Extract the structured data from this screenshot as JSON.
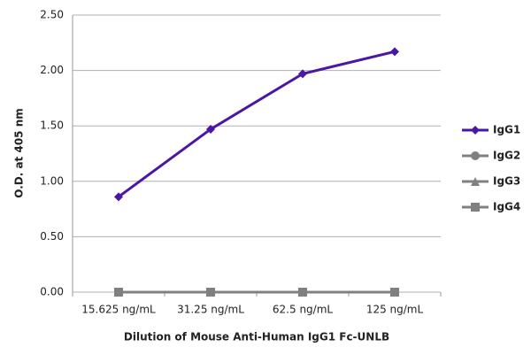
{
  "chart_data": {
    "type": "line",
    "y_label": "O.D. at 405 nm",
    "x_label": "Dilution of Mouse Anti-Human IgG1 Fc-UNLB",
    "categories": [
      "15.625 ng/mL",
      "31.25 ng/mL",
      "62.5 ng/mL",
      "125 ng/mL"
    ],
    "series": [
      {
        "name": "IgG1",
        "color": "#4b16a6",
        "marker": "diamond",
        "values": [
          0.86,
          1.47,
          1.97,
          2.17
        ]
      },
      {
        "name": "IgG2",
        "color": "#808080",
        "marker": "circle",
        "values": [
          0,
          0,
          0,
          0
        ]
      },
      {
        "name": "IgG3",
        "color": "#808080",
        "marker": "triangle",
        "values": [
          0,
          0,
          0,
          0
        ]
      },
      {
        "name": "IgG4",
        "color": "#808080",
        "marker": "square",
        "values": [
          0,
          0,
          0,
          0
        ]
      }
    ],
    "ylim": [
      0,
      2.5
    ],
    "yticks": [
      {
        "value": 0,
        "label": "0.00"
      },
      {
        "value": 0.5,
        "label": "0.50"
      },
      {
        "value": 1,
        "label": "1.00"
      },
      {
        "value": 1.5,
        "label": "1.50"
      },
      {
        "value": 2,
        "label": "2.00"
      },
      {
        "value": 2.5,
        "label": "2.50"
      }
    ],
    "grid": true,
    "legend": "right"
  }
}
